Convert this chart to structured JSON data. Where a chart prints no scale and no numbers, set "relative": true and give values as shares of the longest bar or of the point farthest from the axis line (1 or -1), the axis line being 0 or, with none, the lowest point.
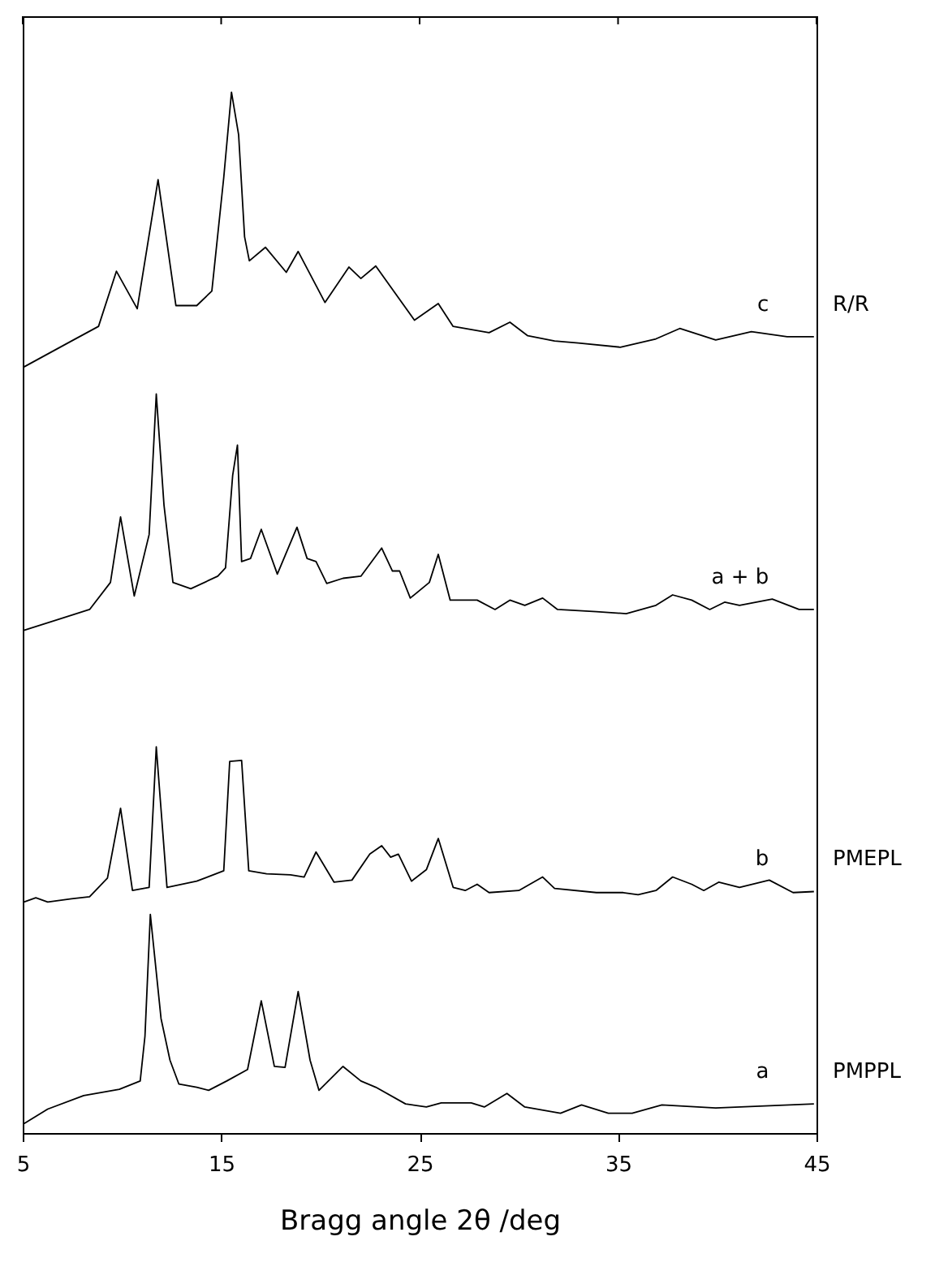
{
  "chart_data": {
    "type": "line",
    "relative": true,
    "xlabel": "Bragg angle 2θ /deg",
    "xlim": [
      5,
      45
    ],
    "xticks": [
      5,
      15,
      25,
      35,
      45
    ],
    "grid": false,
    "line_style": "solid",
    "series": [
      {
        "name": "c",
        "color": "#000000",
        "x": [
          5.06,
          7.46,
          8.82,
          9.72,
          10.77,
          11.82,
          12.72,
          13.77,
          14.53,
          15.13,
          15.52,
          15.88,
          16.18,
          16.42,
          17.23,
          18.28,
          18.88,
          20.23,
          21.44,
          22.04,
          22.79,
          24.74,
          25.94,
          26.69,
          28.5,
          29.55,
          30.45,
          31.8,
          33.0,
          35.11,
          36.91,
          38.11,
          39.92,
          41.72,
          43.52,
          44.87
        ],
        "values": [
          0.736,
          0.761,
          0.775,
          0.828,
          0.792,
          0.916,
          0.795,
          0.795,
          0.809,
          0.918,
          1.0,
          0.959,
          0.861,
          0.838,
          0.851,
          0.827,
          0.847,
          0.798,
          0.832,
          0.821,
          0.833,
          0.781,
          0.797,
          0.775,
          0.769,
          0.779,
          0.766,
          0.761,
          0.759,
          0.755,
          0.763,
          0.773,
          0.762,
          0.77,
          0.765,
          0.765
        ]
      },
      {
        "name": "a + b",
        "color": "#000000",
        "x": [
          5.06,
          8.37,
          9.42,
          9.93,
          10.62,
          11.37,
          11.73,
          12.12,
          12.57,
          13.47,
          14.83,
          15.22,
          15.58,
          15.82,
          16.03,
          16.48,
          17.02,
          17.83,
          18.82,
          19.33,
          19.78,
          20.32,
          21.14,
          22.04,
          23.09,
          23.63,
          23.99,
          24.53,
          25.49,
          25.94,
          26.54,
          27.9,
          28.8,
          29.55,
          30.3,
          31.2,
          31.95,
          33.91,
          35.41,
          36.91,
          37.75,
          38.71,
          39.62,
          40.37,
          41.12,
          42.77,
          44.12,
          44.87
        ],
        "values": [
          0.483,
          0.503,
          0.529,
          0.592,
          0.516,
          0.575,
          0.71,
          0.603,
          0.529,
          0.523,
          0.535,
          0.543,
          0.632,
          0.661,
          0.549,
          0.552,
          0.58,
          0.537,
          0.582,
          0.552,
          0.549,
          0.528,
          0.533,
          0.535,
          0.562,
          0.54,
          0.54,
          0.514,
          0.529,
          0.556,
          0.512,
          0.512,
          0.503,
          0.512,
          0.507,
          0.514,
          0.503,
          0.501,
          0.499,
          0.507,
          0.517,
          0.512,
          0.503,
          0.51,
          0.507,
          0.513,
          0.503,
          0.503
        ]
      },
      {
        "name": "b",
        "color": "#000000",
        "x": [
          5.06,
          5.66,
          6.26,
          7.46,
          8.37,
          9.27,
          9.93,
          10.53,
          11.37,
          11.73,
          12.27,
          13.77,
          15.13,
          15.43,
          16.03,
          16.39,
          17.29,
          18.49,
          19.18,
          19.78,
          20.69,
          21.59,
          22.49,
          23.09,
          23.54,
          23.93,
          24.59,
          25.34,
          25.94,
          26.69,
          27.3,
          27.9,
          28.5,
          30.0,
          31.2,
          31.8,
          33.91,
          35.26,
          36.01,
          36.91,
          37.75,
          38.71,
          39.32,
          40.07,
          41.12,
          42.62,
          43.82,
          44.87
        ],
        "values": [
          0.222,
          0.226,
          0.222,
          0.225,
          0.227,
          0.245,
          0.312,
          0.233,
          0.236,
          0.371,
          0.236,
          0.242,
          0.252,
          0.357,
          0.358,
          0.252,
          0.249,
          0.248,
          0.246,
          0.27,
          0.241,
          0.243,
          0.268,
          0.276,
          0.265,
          0.268,
          0.242,
          0.253,
          0.283,
          0.236,
          0.233,
          0.239,
          0.231,
          0.233,
          0.246,
          0.235,
          0.231,
          0.231,
          0.229,
          0.233,
          0.246,
          0.239,
          0.233,
          0.241,
          0.236,
          0.243,
          0.231,
          0.232
        ]
      },
      {
        "name": "a",
        "color": "#000000",
        "x": [
          5.06,
          6.26,
          8.07,
          9.87,
          10.92,
          11.16,
          11.43,
          11.97,
          12.42,
          12.87,
          13.77,
          14.37,
          15.28,
          16.33,
          17.02,
          17.68,
          18.22,
          18.88,
          19.48,
          19.93,
          21.14,
          22.04,
          22.79,
          24.29,
          25.34,
          26.09,
          27.6,
          28.26,
          29.4,
          30.3,
          32.1,
          33.16,
          34.51,
          35.71,
          37.21,
          39.92,
          44.87
        ],
        "values": [
          0.009,
          0.023,
          0.036,
          0.042,
          0.05,
          0.093,
          0.21,
          0.11,
          0.07,
          0.047,
          0.044,
          0.041,
          0.05,
          0.061,
          0.127,
          0.064,
          0.063,
          0.136,
          0.07,
          0.041,
          0.064,
          0.05,
          0.044,
          0.028,
          0.025,
          0.029,
          0.029,
          0.025,
          0.038,
          0.025,
          0.019,
          0.027,
          0.019,
          0.019,
          0.027,
          0.024,
          0.028
        ]
      }
    ],
    "annotations": [
      "R/R",
      "PMEPL",
      "PMPPL"
    ]
  }
}
